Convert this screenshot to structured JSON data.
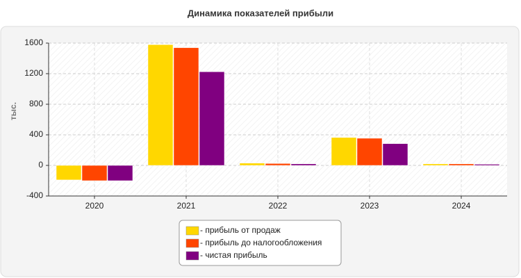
{
  "chart_data": {
    "type": "bar",
    "title": "Динамика показателей прибыли",
    "y_label": "тыс.",
    "categories": [
      "2020",
      "2021",
      "2022",
      "2023",
      "2024"
    ],
    "series": [
      {
        "name": "- прибыль от продаж",
        "color": "#FFD700",
        "values": [
          -190,
          1580,
          30,
          365,
          20
        ]
      },
      {
        "name": "- прибыль до налогообложения",
        "color": "#FF4500",
        "values": [
          -200,
          1540,
          25,
          355,
          20
        ]
      },
      {
        "name": "- чистая прибыль",
        "color": "#800080",
        "values": [
          -200,
          1225,
          20,
          285,
          15
        ]
      }
    ],
    "ylim": [
      -400,
      1600
    ],
    "yticks": [
      -400,
      0,
      400,
      800,
      1200,
      1600
    ],
    "grid": true,
    "legend": "bottom"
  }
}
